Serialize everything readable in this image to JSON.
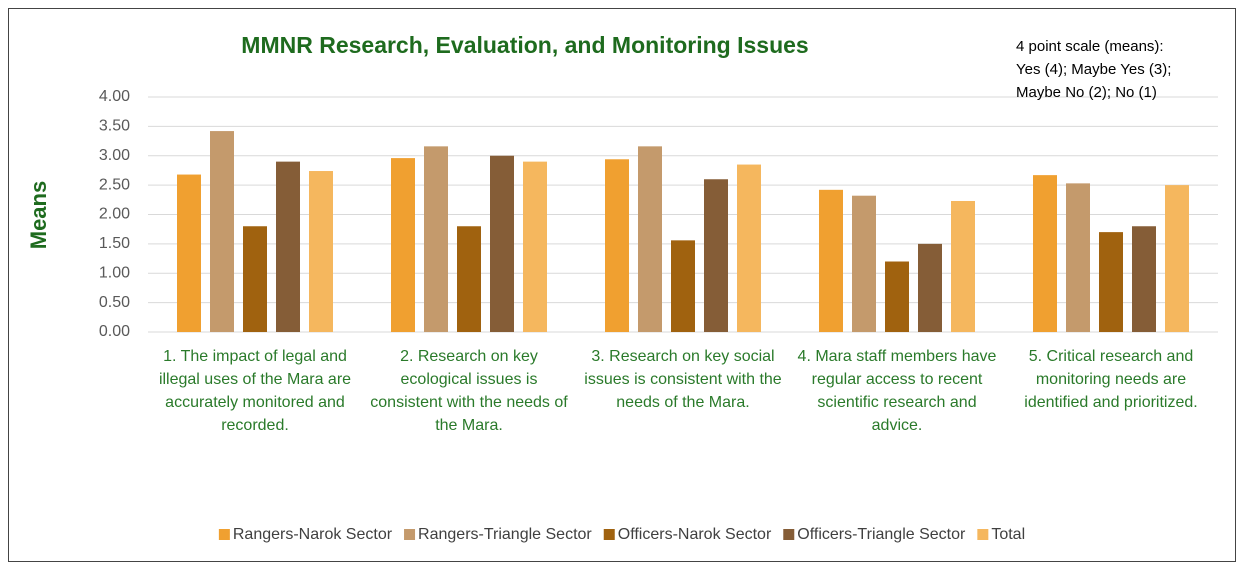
{
  "chart_data": {
    "type": "bar",
    "title": "MMNR Research, Evaluation, and Monitoring Issues",
    "y_label": "Means",
    "annotation": [
      "4 point scale (means):",
      "Yes (4); Maybe Yes (3);",
      "Maybe No (2); No (1)"
    ],
    "categories": [
      "1. The impact of legal and illegal uses of the Mara are accurately monitored and recorded.",
      "2. Research on key ecological issues is consistent with the needs of the Mara.",
      "3. Research on key social issues is consistent with the needs of the Mara.",
      "4.  Mara staff members have regular access to recent scientific research and advice.",
      "5. Critical research and monitoring needs are identified and prioritized."
    ],
    "series": [
      {
        "name": "Rangers-Narok Sector",
        "color": "#f0a030",
        "values": [
          2.68,
          2.96,
          2.94,
          2.42,
          2.67
        ]
      },
      {
        "name": "Rangers-Triangle Sector",
        "color": "#c49a6c",
        "values": [
          3.42,
          3.16,
          3.16,
          2.32,
          2.53
        ]
      },
      {
        "name": "Officers-Narok Sector",
        "color": "#a0620f",
        "values": [
          1.8,
          1.8,
          1.56,
          1.2,
          1.7
        ]
      },
      {
        "name": "Officers-Triangle Sector",
        "color": "#855d37",
        "values": [
          2.9,
          3.0,
          2.6,
          1.5,
          1.8
        ]
      },
      {
        "name": "Total",
        "color": "#f5b75e",
        "values": [
          2.74,
          2.9,
          2.85,
          2.23,
          2.5
        ]
      }
    ],
    "ylim": [
      0,
      4
    ],
    "yticks": [
      {
        "value": 0,
        "label": "0.00"
      },
      {
        "value": 0.5,
        "label": "0.50"
      },
      {
        "value": 1,
        "label": "1.00"
      },
      {
        "value": 1.5,
        "label": "1.50"
      },
      {
        "value": 2,
        "label": "2.00"
      },
      {
        "value": 2.5,
        "label": "2.50"
      },
      {
        "value": 3,
        "label": "3.00"
      },
      {
        "value": 3.5,
        "label": "3.50"
      },
      {
        "value": 4,
        "label": "4.00"
      }
    ],
    "grid": true,
    "legend": "bottom"
  }
}
